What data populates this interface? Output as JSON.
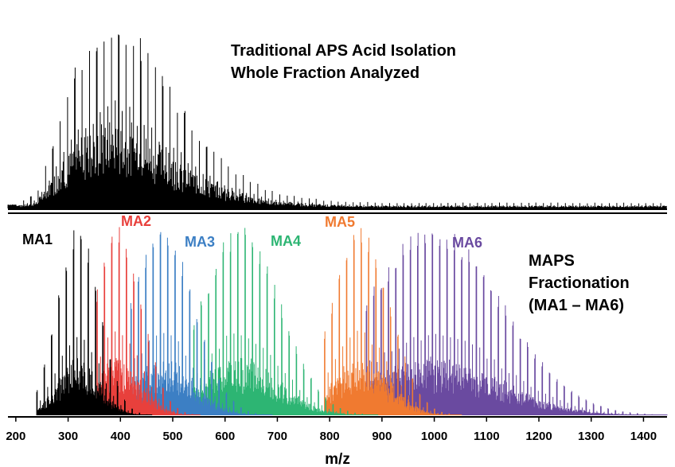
{
  "chart_data": [
    {
      "type": "line",
      "panel": "top",
      "title": "",
      "annotation": [
        "Traditional APS Acid Isolation",
        "Whole Fraction Analyzed"
      ],
      "xlim": [
        185,
        1445
      ],
      "series": [
        {
          "name": "",
          "color": "#000000",
          "envelope": {
            "x": [
              200,
              240,
              270,
              300,
              330,
              360,
              390,
              420,
              450,
              480,
              510,
              540,
              570,
              600,
              650,
              700,
              800,
              900,
              1000,
              1200,
              1440
            ],
            "height": [
              0.02,
              0.08,
              0.35,
              0.62,
              0.82,
              0.95,
              1.0,
              0.93,
              0.82,
              0.68,
              0.55,
              0.42,
              0.32,
              0.24,
              0.14,
              0.08,
              0.04,
              0.03,
              0.03,
              0.03,
              0.03
            ]
          }
        }
      ]
    },
    {
      "type": "line",
      "panel": "bottom",
      "xlabel": "m/z",
      "xlim": [
        185,
        1445
      ],
      "xticks": [
        200,
        300,
        400,
        500,
        600,
        700,
        800,
        900,
        1000,
        1100,
        1200,
        1300,
        1400
      ],
      "annotation": [
        "MAPS",
        "Fractionation",
        "(MA1 – MA6)"
      ],
      "series": [
        {
          "name": "MA6",
          "color": "#6a4aa0",
          "center": 1000,
          "spread": 130,
          "start": 870,
          "spacing": 14
        },
        {
          "name": "MA5",
          "color": "#f07a30",
          "center": 860,
          "spread": 55,
          "start": 790,
          "spacing": 14
        },
        {
          "name": "MA4",
          "color": "#2db573",
          "center": 630,
          "spread": 75,
          "start": 540,
          "spacing": 14
        },
        {
          "name": "MA3",
          "color": "#3c7fc4",
          "center": 480,
          "spread": 60,
          "start": 420,
          "spacing": 14
        },
        {
          "name": "MA2",
          "color": "#e8403c",
          "center": 395,
          "spread": 45,
          "start": 355,
          "spacing": 14
        },
        {
          "name": "MA1",
          "color": "#000000",
          "center": 320,
          "spread": 40,
          "start": 240,
          "spacing": 14
        }
      ]
    }
  ]
}
